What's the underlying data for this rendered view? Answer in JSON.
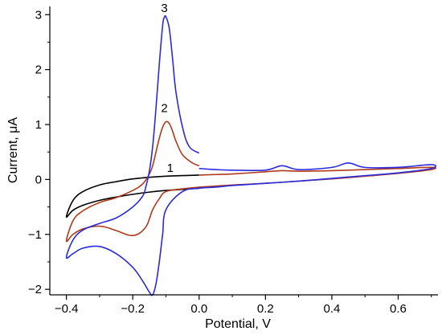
{
  "chart_data": {
    "type": "line",
    "title": "",
    "xlabel": "Potential, V",
    "ylabel": "Current, μA",
    "xlim": [
      -0.45,
      0.72
    ],
    "ylim": [
      -2.1,
      3.15
    ],
    "x_ticks": [
      -0.4,
      -0.2,
      0.0,
      0.2,
      0.4,
      0.6
    ],
    "x_tick_labels": [
      "−0.4",
      "−0.2",
      "0.0",
      "0.2",
      "0.4",
      "0.6"
    ],
    "y_ticks": [
      -2,
      -1,
      0,
      1,
      2,
      3
    ],
    "y_tick_labels": [
      "−2",
      "−1",
      "0",
      "1",
      "2",
      "3"
    ],
    "grid": false,
    "legend": "none",
    "series": [
      {
        "label": "1",
        "color": "#000000",
        "x": [
          0.0,
          -0.05,
          -0.1,
          -0.15,
          -0.2,
          -0.25,
          -0.3,
          -0.35,
          -0.38,
          -0.4,
          -0.38,
          -0.35,
          -0.3,
          -0.25,
          -0.2,
          -0.15,
          -0.1,
          -0.05,
          0.0
        ],
        "y": [
          0.08,
          0.07,
          0.06,
          0.04,
          0.01,
          -0.04,
          -0.1,
          -0.22,
          -0.38,
          -0.68,
          -0.56,
          -0.47,
          -0.38,
          -0.32,
          -0.27,
          -0.23,
          -0.2,
          -0.18,
          -0.16
        ]
      },
      {
        "label": "2",
        "color": "#b03a1a",
        "x": [
          0.0,
          -0.02,
          -0.05,
          -0.07,
          -0.08,
          -0.09,
          -0.1,
          -0.11,
          -0.12,
          -0.13,
          -0.14,
          -0.15,
          -0.17,
          -0.2,
          -0.25,
          -0.3,
          -0.35,
          -0.38,
          -0.4,
          -0.38,
          -0.35,
          -0.3,
          -0.25,
          -0.22,
          -0.2,
          -0.18,
          -0.16,
          -0.15,
          -0.14,
          -0.12,
          -0.1,
          -0.05,
          0.0,
          0.05,
          0.1,
          0.2,
          0.3,
          0.4,
          0.5,
          0.6,
          0.7,
          0.7,
          0.6,
          0.5,
          0.4,
          0.3,
          0.25,
          0.2,
          0.1,
          0.05,
          0.0
        ],
        "y": [
          0.25,
          0.3,
          0.45,
          0.7,
          0.88,
          1.02,
          1.05,
          0.95,
          0.75,
          0.5,
          0.25,
          0.1,
          -0.08,
          -0.2,
          -0.33,
          -0.42,
          -0.57,
          -0.75,
          -1.12,
          -1.0,
          -0.9,
          -0.85,
          -0.93,
          -1.0,
          -1.02,
          -0.98,
          -0.86,
          -0.72,
          -0.55,
          -0.35,
          -0.22,
          -0.17,
          -0.14,
          -0.12,
          -0.1,
          -0.07,
          -0.03,
          0.01,
          0.06,
          0.11,
          0.18,
          0.22,
          0.2,
          0.18,
          0.16,
          0.15,
          0.16,
          0.14,
          0.1,
          0.09,
          0.08
        ]
      },
      {
        "label": "3",
        "color": "#2a2ae0",
        "x": [
          0.0,
          -0.03,
          -0.05,
          -0.07,
          -0.08,
          -0.09,
          -0.1,
          -0.105,
          -0.11,
          -0.12,
          -0.13,
          -0.14,
          -0.15,
          -0.16,
          -0.17,
          -0.2,
          -0.25,
          -0.3,
          -0.35,
          -0.38,
          -0.4,
          -0.38,
          -0.35,
          -0.3,
          -0.25,
          -0.2,
          -0.17,
          -0.15,
          -0.14,
          -0.13,
          -0.12,
          -0.11,
          -0.1,
          -0.05,
          0.0,
          0.05,
          0.1,
          0.2,
          0.3,
          0.4,
          0.5,
          0.6,
          0.7,
          0.7,
          0.6,
          0.5,
          0.45,
          0.4,
          0.3,
          0.25,
          0.2,
          0.1,
          0.05,
          0.0
        ],
        "y": [
          0.48,
          0.6,
          0.95,
          1.6,
          2.2,
          2.75,
          2.96,
          2.95,
          2.8,
          2.1,
          1.3,
          0.6,
          0.15,
          -0.12,
          -0.3,
          -0.5,
          -0.7,
          -0.8,
          -0.92,
          -1.1,
          -1.42,
          -1.35,
          -1.25,
          -1.22,
          -1.35,
          -1.6,
          -1.85,
          -2.05,
          -2.1,
          -1.9,
          -1.5,
          -1.0,
          -0.55,
          -0.22,
          -0.16,
          -0.14,
          -0.11,
          -0.07,
          -0.03,
          0.02,
          0.07,
          0.12,
          0.2,
          0.27,
          0.22,
          0.22,
          0.3,
          0.22,
          0.18,
          0.25,
          0.17,
          0.17,
          0.18,
          0.2
        ]
      }
    ]
  }
}
